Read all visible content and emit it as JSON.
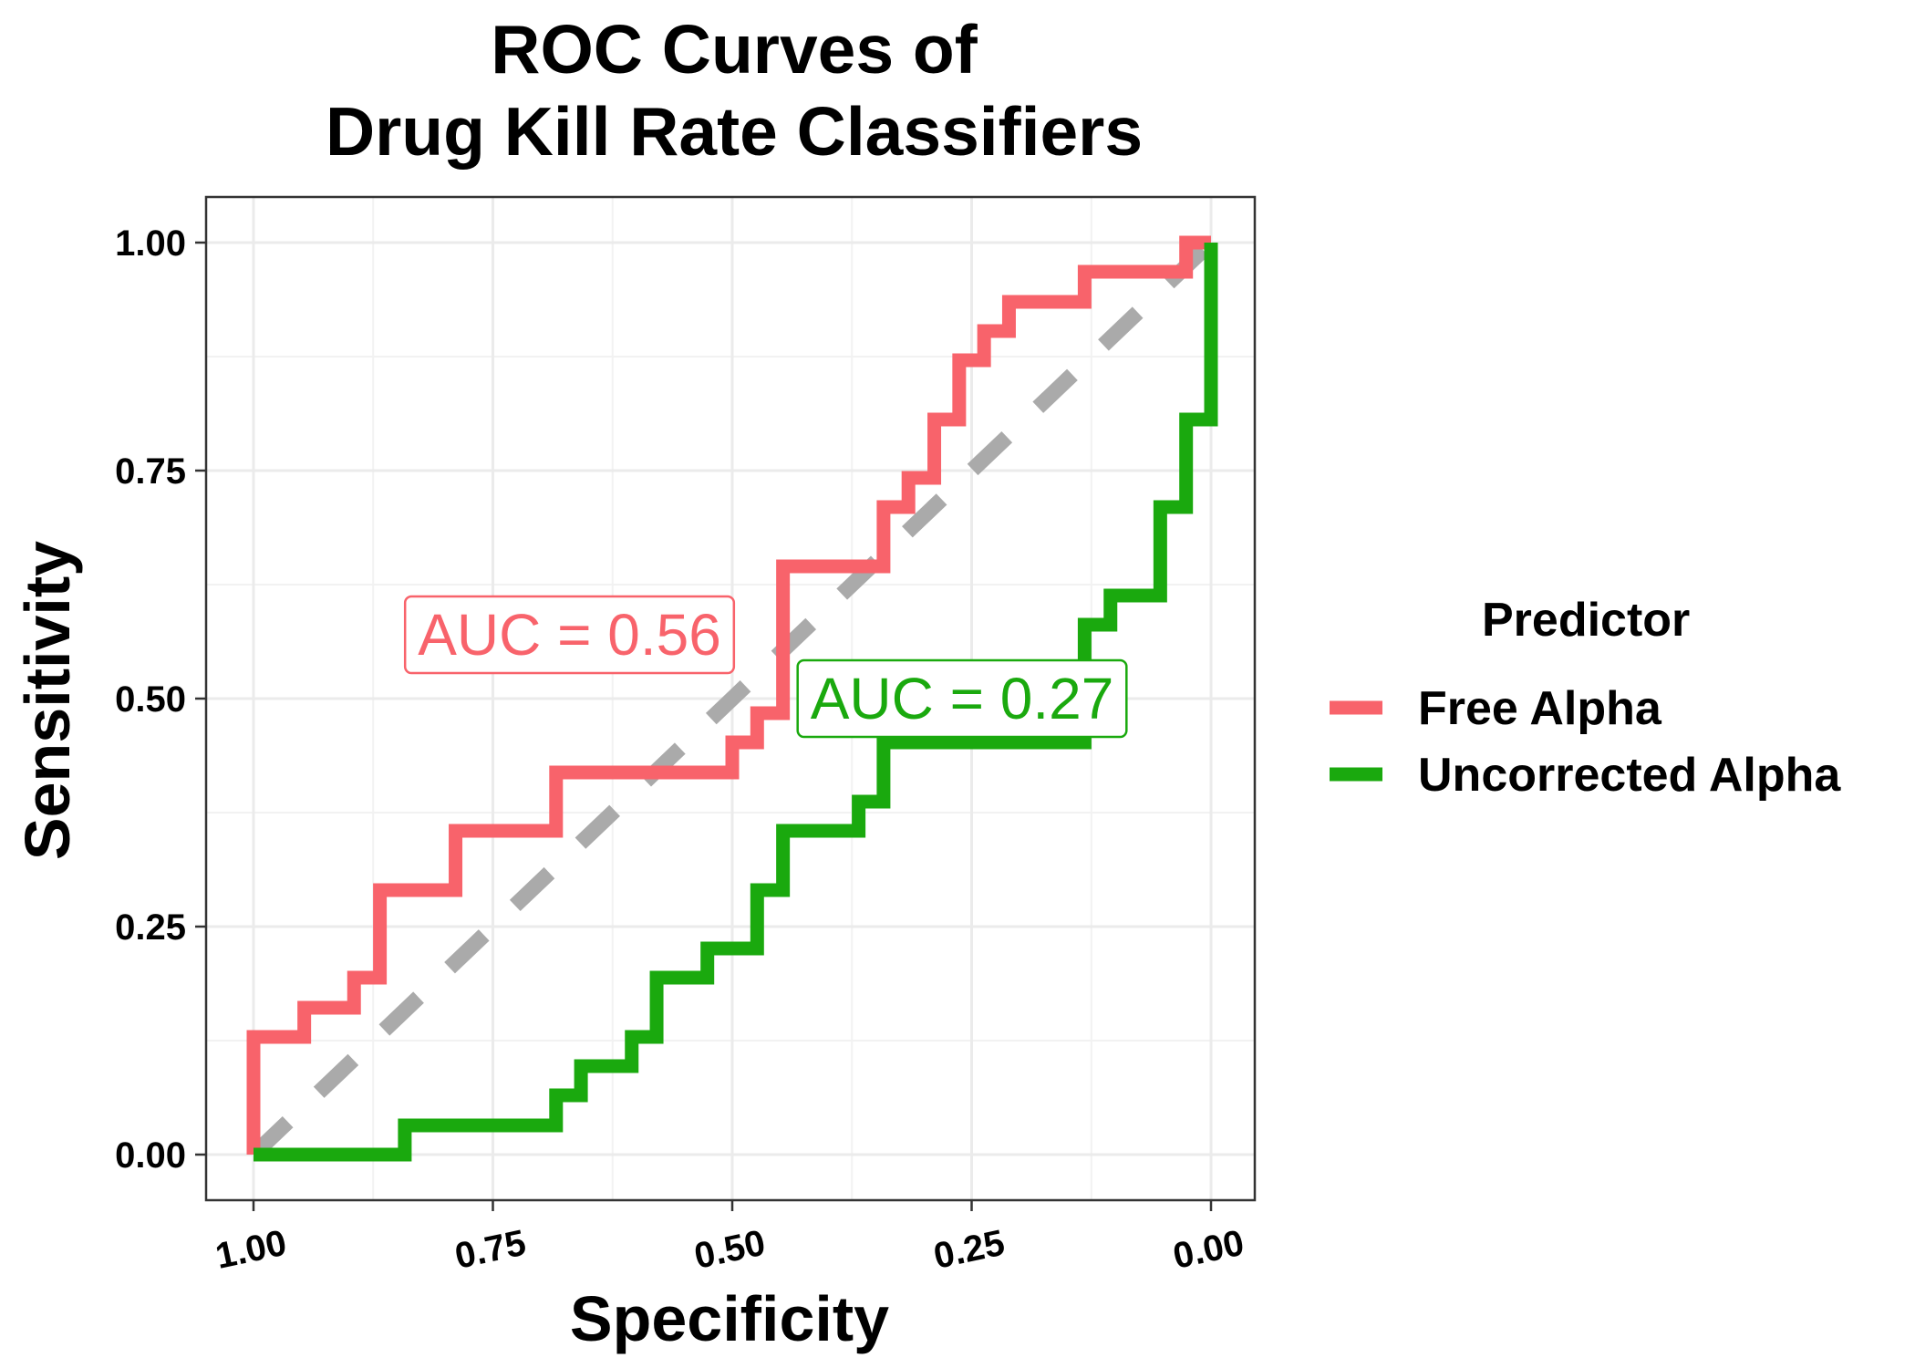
{
  "chart_data": {
    "type": "line",
    "title_lines": [
      "ROC Curves of",
      "Drug Kill Rate Classifiers"
    ],
    "xlabel": "Specificity",
    "ylabel": "Sensitivity",
    "xlim": [
      1.0,
      0.0
    ],
    "ylim": [
      0.0,
      1.0
    ],
    "x_reversed": true,
    "grid": true,
    "x_ticks": [
      1.0,
      0.75,
      0.5,
      0.25,
      0.0
    ],
    "x_tick_labels": [
      "1.00",
      "0.75",
      "0.50",
      "0.25",
      "0.00"
    ],
    "y_ticks": [
      0.0,
      0.25,
      0.5,
      0.75,
      1.0
    ],
    "y_tick_labels": [
      "0.00",
      "0.25",
      "0.50",
      "0.75",
      "1.00"
    ],
    "legend": {
      "title": "Predictor",
      "placement": "right"
    },
    "diagonal": {
      "from": [
        1.0,
        0.0
      ],
      "to": [
        0.0,
        1.0
      ],
      "color": "#aaaaaa",
      "style": "dashed"
    },
    "series": [
      {
        "name": "Free Alpha",
        "color": "#f8636b",
        "auc_label": "AUC = 0.56",
        "points": [
          [
            1.0,
            0.0
          ],
          [
            1.0,
            0.129
          ],
          [
            0.947,
            0.129
          ],
          [
            0.947,
            0.161
          ],
          [
            0.895,
            0.161
          ],
          [
            0.895,
            0.194
          ],
          [
            0.868,
            0.194
          ],
          [
            0.868,
            0.29
          ],
          [
            0.789,
            0.29
          ],
          [
            0.789,
            0.355
          ],
          [
            0.684,
            0.355
          ],
          [
            0.684,
            0.419
          ],
          [
            0.5,
            0.419
          ],
          [
            0.5,
            0.452
          ],
          [
            0.474,
            0.452
          ],
          [
            0.474,
            0.484
          ],
          [
            0.447,
            0.484
          ],
          [
            0.447,
            0.645
          ],
          [
            0.342,
            0.645
          ],
          [
            0.342,
            0.71
          ],
          [
            0.316,
            0.71
          ],
          [
            0.316,
            0.742
          ],
          [
            0.289,
            0.742
          ],
          [
            0.289,
            0.806
          ],
          [
            0.263,
            0.806
          ],
          [
            0.263,
            0.871
          ],
          [
            0.237,
            0.871
          ],
          [
            0.237,
            0.903
          ],
          [
            0.211,
            0.903
          ],
          [
            0.211,
            0.935
          ],
          [
            0.132,
            0.935
          ],
          [
            0.132,
            0.968
          ],
          [
            0.026,
            0.968
          ],
          [
            0.026,
            1.0
          ],
          [
            0.0,
            1.0
          ]
        ]
      },
      {
        "name": "Uncorrected Alpha",
        "color": "#1aa90e",
        "auc_label": "AUC = 0.27",
        "points": [
          [
            1.0,
            0.0
          ],
          [
            0.842,
            0.0
          ],
          [
            0.842,
            0.032
          ],
          [
            0.684,
            0.032
          ],
          [
            0.684,
            0.065
          ],
          [
            0.658,
            0.065
          ],
          [
            0.658,
            0.097
          ],
          [
            0.605,
            0.097
          ],
          [
            0.605,
            0.129
          ],
          [
            0.579,
            0.129
          ],
          [
            0.579,
            0.194
          ],
          [
            0.526,
            0.194
          ],
          [
            0.526,
            0.226
          ],
          [
            0.474,
            0.226
          ],
          [
            0.474,
            0.29
          ],
          [
            0.447,
            0.29
          ],
          [
            0.447,
            0.355
          ],
          [
            0.368,
            0.355
          ],
          [
            0.368,
            0.387
          ],
          [
            0.342,
            0.387
          ],
          [
            0.342,
            0.452
          ],
          [
            0.132,
            0.452
          ],
          [
            0.132,
            0.581
          ],
          [
            0.105,
            0.581
          ],
          [
            0.105,
            0.613
          ],
          [
            0.053,
            0.613
          ],
          [
            0.053,
            0.71
          ],
          [
            0.026,
            0.71
          ],
          [
            0.026,
            0.806
          ],
          [
            0.0,
            0.806
          ],
          [
            0.0,
            1.0
          ]
        ]
      }
    ],
    "annotations": [
      {
        "text": "AUC = 0.56",
        "series": "Free Alpha",
        "x": 0.67,
        "y": 0.57
      },
      {
        "text": "AUC = 0.27",
        "series": "Uncorrected Alpha",
        "x": 0.26,
        "y": 0.5
      }
    ]
  }
}
